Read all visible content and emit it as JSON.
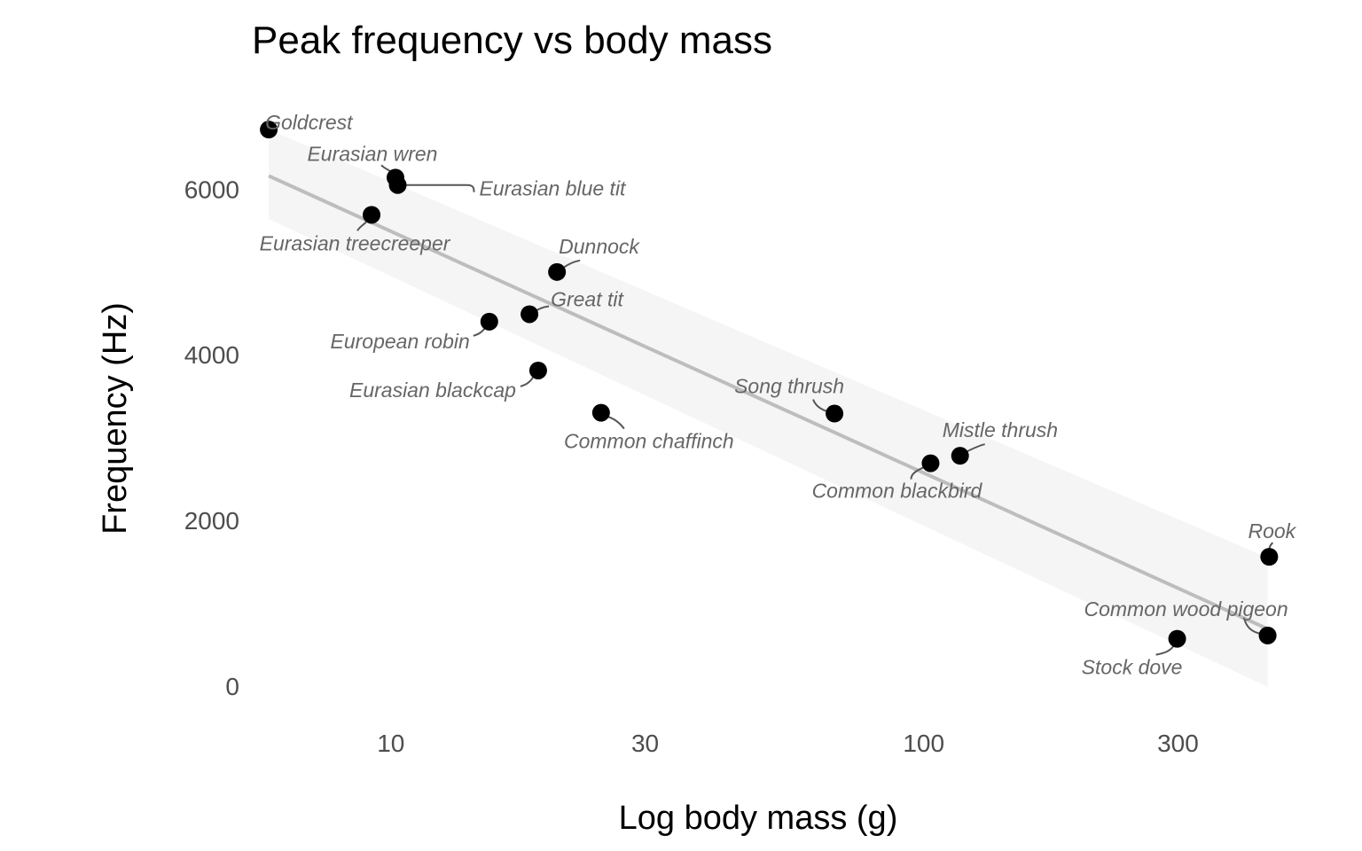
{
  "chart_data": {
    "type": "scatter",
    "title": "Peak frequency vs body mass",
    "xlabel": "Log body mass (g)",
    "ylabel": "Frequency (Hz)",
    "x_scale": "log10",
    "xlim": [
      5.4,
      460
    ],
    "ylim": [
      -280,
      7000
    ],
    "x_ticks": [
      10,
      30,
      100,
      300
    ],
    "x_tick_labels": [
      "10",
      "30",
      "100",
      "300"
    ],
    "y_ticks": [
      0,
      2000,
      4000,
      6000
    ],
    "y_tick_labels": [
      "0",
      "2000",
      "4000",
      "6000"
    ],
    "grid": false,
    "legend": "none",
    "colors": {
      "points": "#000000",
      "fit_line": "#bdbdbd",
      "confidence_band": "#f4f4f4",
      "labels": "#666666"
    },
    "points": [
      {
        "label": "Goldcrest",
        "x": 5.9,
        "y": 6720
      },
      {
        "label": "Eurasian wren",
        "x": 10.2,
        "y": 6140
      },
      {
        "label": "Eurasian blue tit",
        "x": 10.3,
        "y": 6050
      },
      {
        "label": "Eurasian treecreeper",
        "x": 9.2,
        "y": 5690
      },
      {
        "label": "Dunnock",
        "x": 20.5,
        "y": 5000
      },
      {
        "label": "Great tit",
        "x": 18.2,
        "y": 4490
      },
      {
        "label": "European robin",
        "x": 15.3,
        "y": 4400
      },
      {
        "label": "Eurasian blackcap",
        "x": 18.9,
        "y": 3810
      },
      {
        "label": "Common chaffinch",
        "x": 24.8,
        "y": 3300
      },
      {
        "label": "Song thrush",
        "x": 68,
        "y": 3290
      },
      {
        "label": "Mistle thrush",
        "x": 117,
        "y": 2780
      },
      {
        "label": "Common blackbird",
        "x": 103,
        "y": 2690
      },
      {
        "label": "Rook",
        "x": 445,
        "y": 1560
      },
      {
        "label": "Common wood pigeon",
        "x": 442,
        "y": 610
      },
      {
        "label": "Stock dove",
        "x": 299,
        "y": 570
      }
    ],
    "fit": {
      "type": "linear",
      "x": [
        5.9,
        442
      ],
      "y": [
        6160,
        690
      ],
      "band_lower": [
        5640,
        -10
      ],
      "band_upper": [
        6720,
        1550
      ]
    }
  }
}
